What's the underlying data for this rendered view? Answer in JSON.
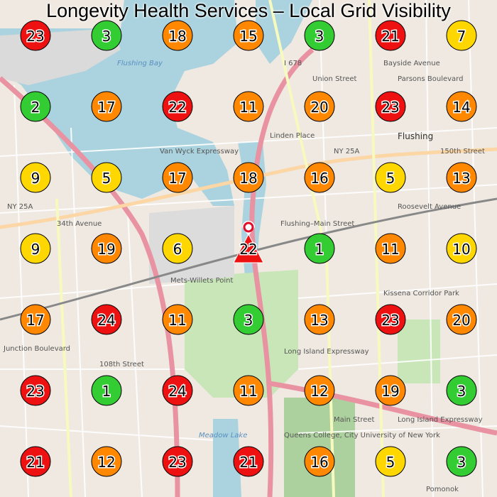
{
  "title": "Longevity Health Services – Local Grid Visibility",
  "map_labels": {
    "water": [
      "Flushing Bay",
      "Meadow Lake"
    ],
    "places": [
      "Flushing",
      "Flushing–Main Street",
      "Mets-Willets Point",
      "Queens College, City University of New York",
      "Kissena Corridor Park",
      "Pomonok"
    ],
    "roads": [
      "NY 25A",
      "NY 25A",
      "I 678",
      "Bayside Avenue",
      "34th Avenue",
      "Roosevelt Avenue",
      "Long Island Expressway",
      "Long Island Expressway",
      "Union Street",
      "Parsons Boulevard",
      "Main Street",
      "Linden Place",
      "Junction Boulevard",
      "108th Street",
      "Van Wyck Expressway",
      "150th Street"
    ]
  },
  "colors": {
    "red": "#ee1111",
    "orange": "#ff8800",
    "yellow": "#ffd700",
    "green": "#33cc33"
  },
  "business_marker": {
    "rank": "22",
    "color": "#ee1111",
    "icon": "map-pin-icon"
  },
  "grid": [
    [
      {
        "rank": "23",
        "color": "#ee1111"
      },
      {
        "rank": "3",
        "color": "#33cc33"
      },
      {
        "rank": "18",
        "color": "#ff8800"
      },
      {
        "rank": "15",
        "color": "#ff8800"
      },
      {
        "rank": "3",
        "color": "#33cc33"
      },
      {
        "rank": "21",
        "color": "#ee1111"
      },
      {
        "rank": "7",
        "color": "#ffd700"
      }
    ],
    [
      {
        "rank": "2",
        "color": "#33cc33"
      },
      {
        "rank": "17",
        "color": "#ff8800"
      },
      {
        "rank": "22",
        "color": "#ee1111"
      },
      {
        "rank": "11",
        "color": "#ff8800"
      },
      {
        "rank": "20",
        "color": "#ff8800"
      },
      {
        "rank": "23",
        "color": "#ee1111"
      },
      {
        "rank": "14",
        "color": "#ff8800"
      }
    ],
    [
      {
        "rank": "9",
        "color": "#ffd700"
      },
      {
        "rank": "5",
        "color": "#ffd700"
      },
      {
        "rank": "17",
        "color": "#ff8800"
      },
      {
        "rank": "18",
        "color": "#ff8800"
      },
      {
        "rank": "16",
        "color": "#ff8800"
      },
      {
        "rank": "5",
        "color": "#ffd700"
      },
      {
        "rank": "13",
        "color": "#ff8800"
      }
    ],
    [
      {
        "rank": "9",
        "color": "#ffd700"
      },
      {
        "rank": "19",
        "color": "#ff8800"
      },
      {
        "rank": "6",
        "color": "#ffd700"
      },
      {
        "rank": "22",
        "color": "#ee1111",
        "center": true
      },
      {
        "rank": "1",
        "color": "#33cc33"
      },
      {
        "rank": "11",
        "color": "#ff8800"
      },
      {
        "rank": "10",
        "color": "#ffd700"
      }
    ],
    [
      {
        "rank": "17",
        "color": "#ff8800"
      },
      {
        "rank": "24",
        "color": "#ee1111"
      },
      {
        "rank": "11",
        "color": "#ff8800"
      },
      {
        "rank": "3",
        "color": "#33cc33"
      },
      {
        "rank": "13",
        "color": "#ff8800"
      },
      {
        "rank": "23",
        "color": "#ee1111"
      },
      {
        "rank": "20",
        "color": "#ff8800"
      }
    ],
    [
      {
        "rank": "23",
        "color": "#ee1111"
      },
      {
        "rank": "1",
        "color": "#33cc33"
      },
      {
        "rank": "24",
        "color": "#ee1111"
      },
      {
        "rank": "11",
        "color": "#ff8800"
      },
      {
        "rank": "12",
        "color": "#ff8800"
      },
      {
        "rank": "19",
        "color": "#ff8800"
      },
      {
        "rank": "3",
        "color": "#33cc33"
      }
    ],
    [
      {
        "rank": "21",
        "color": "#ee1111"
      },
      {
        "rank": "12",
        "color": "#ff8800"
      },
      {
        "rank": "23",
        "color": "#ee1111"
      },
      {
        "rank": "21",
        "color": "#ee1111"
      },
      {
        "rank": "16",
        "color": "#ff8800"
      },
      {
        "rank": "5",
        "color": "#ffd700"
      },
      {
        "rank": "3",
        "color": "#33cc33"
      }
    ]
  ]
}
